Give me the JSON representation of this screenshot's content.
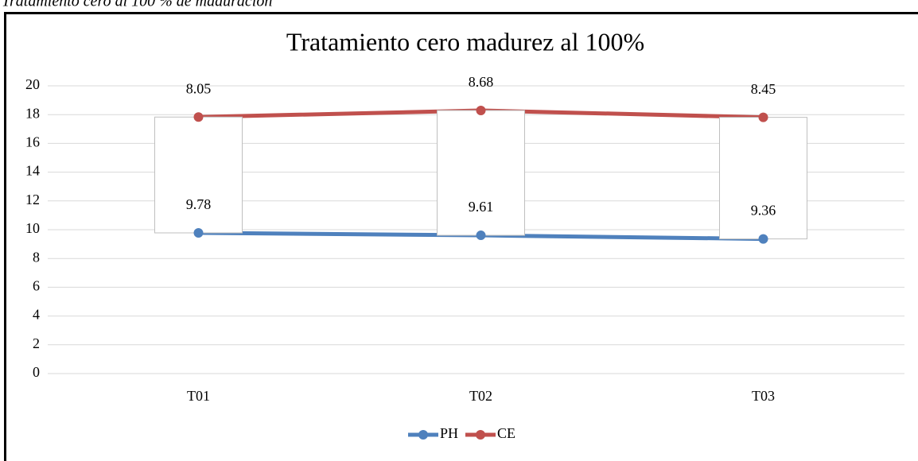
{
  "caption": "Tratamiento cero al 100 % de maduración",
  "chart_data": {
    "type": "line",
    "stacked": true,
    "title": "Tratamiento cero  madurez al 100%",
    "categories": [
      "T01",
      "T02",
      "T03"
    ],
    "series": [
      {
        "name": "PH",
        "color": "#4f81bd",
        "values": [
          9.78,
          9.61,
          9.36
        ]
      },
      {
        "name": "CE",
        "color": "#c0504d",
        "values": [
          8.05,
          8.68,
          8.45
        ]
      }
    ],
    "up_down_bars": true,
    "ylim": [
      0,
      20
    ],
    "yticks": [
      0,
      2,
      4,
      6,
      8,
      10,
      12,
      14,
      16,
      18,
      20
    ],
    "grid": true,
    "legend": "bottom"
  }
}
